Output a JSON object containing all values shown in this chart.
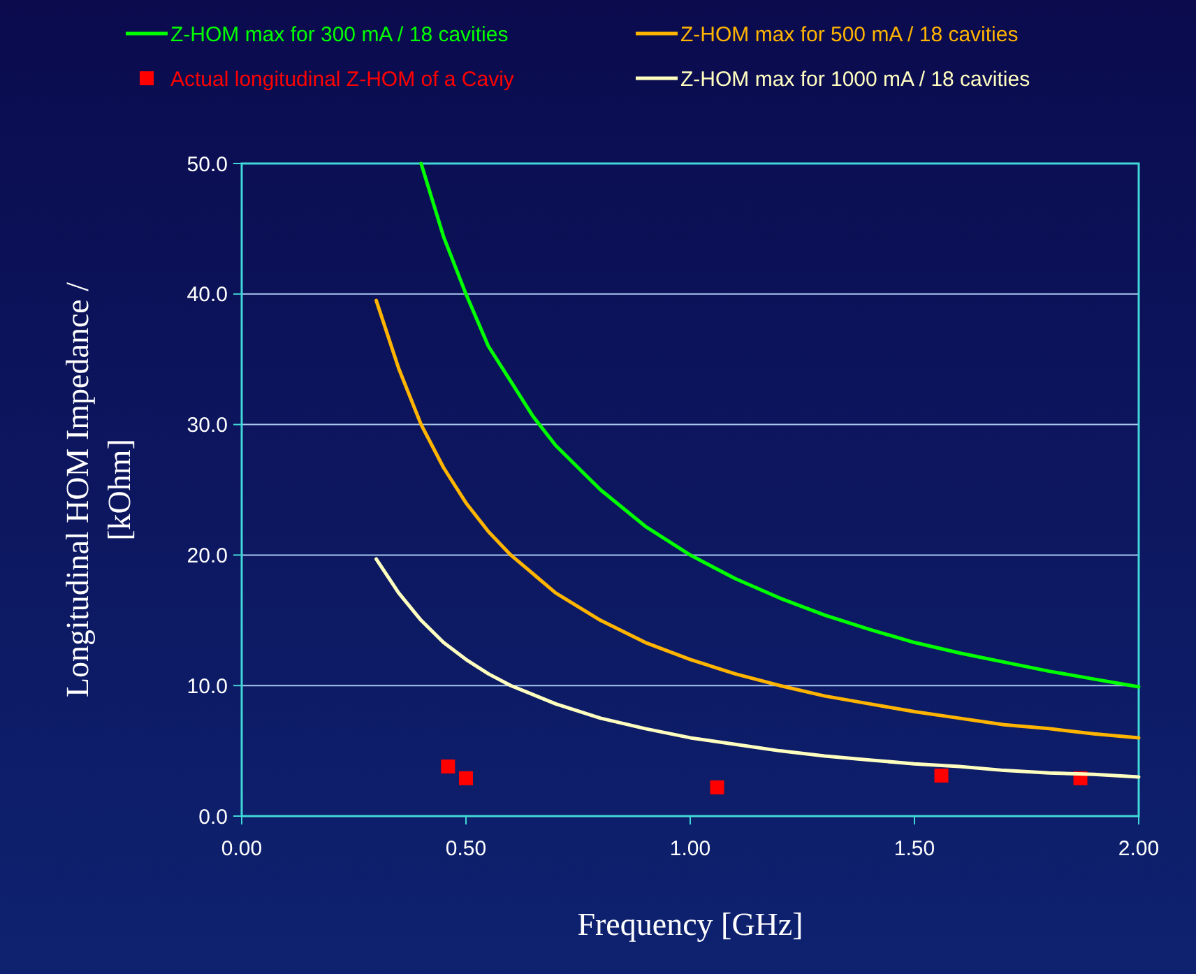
{
  "chart_data": {
    "type": "line",
    "xlabel": "Frequency [GHz]",
    "ylabel": "Longitudinal HOM Impedance / [kOhm]",
    "xlim": [
      0,
      2
    ],
    "ylim": [
      0,
      50
    ],
    "xticks": [
      {
        "value": 0,
        "label": "0.00"
      },
      {
        "value": 0.5,
        "label": "0.50"
      },
      {
        "value": 1,
        "label": "1.00"
      },
      {
        "value": 1.5,
        "label": "1.50"
      },
      {
        "value": 2,
        "label": "2.00"
      }
    ],
    "yticks": [
      {
        "value": 0,
        "label": "0.0"
      },
      {
        "value": 10,
        "label": "10.0"
      },
      {
        "value": 20,
        "label": "20.0"
      },
      {
        "value": 30,
        "label": "30.0"
      },
      {
        "value": 40,
        "label": "40.0"
      },
      {
        "value": 50,
        "label": "50.0"
      }
    ],
    "grid": "y",
    "legend": "top",
    "marker": "none",
    "series": [
      {
        "name": "Z-HOM max for 300 mA / 18 cavities",
        "color": "#00ff00",
        "x": [
          0.4,
          0.45,
          0.5,
          0.55,
          0.6,
          0.65,
          0.7,
          0.8,
          0.9,
          1.0,
          1.1,
          1.2,
          1.3,
          1.4,
          1.5,
          1.6,
          1.7,
          1.8,
          1.9,
          2.0
        ],
        "values": [
          50,
          44.4,
          40,
          36,
          33.3,
          30.6,
          28.4,
          25,
          22.2,
          20,
          18.2,
          16.7,
          15.4,
          14.3,
          13.3,
          12.5,
          11.8,
          11.1,
          10.5,
          9.9
        ]
      },
      {
        "name": "Z-HOM max for 500 mA / 18 cavities",
        "color": "#ffb400",
        "x": [
          0.3,
          0.35,
          0.4,
          0.45,
          0.5,
          0.55,
          0.6,
          0.7,
          0.8,
          0.9,
          1.0,
          1.1,
          1.2,
          1.3,
          1.4,
          1.5,
          1.6,
          1.7,
          1.8,
          1.9,
          2.0
        ],
        "values": [
          39.5,
          34.3,
          30,
          26.7,
          24,
          21.8,
          20,
          17.1,
          15,
          13.3,
          12,
          10.9,
          10,
          9.2,
          8.6,
          8,
          7.5,
          7,
          6.7,
          6.3,
          6
        ]
      },
      {
        "name": "Actual longitudinal Z-HOM of a Caviy",
        "type": "scatter",
        "marker": "square",
        "color": "#ff0000",
        "x": [
          0.46,
          0.5,
          1.06,
          1.56,
          1.87
        ],
        "values": [
          3.8,
          2.9,
          2.2,
          3.1,
          2.9
        ]
      },
      {
        "name": "Z-HOM max for 1000 mA / 18 cavities",
        "color": "#ffffc0",
        "x": [
          0.3,
          0.35,
          0.4,
          0.45,
          0.5,
          0.55,
          0.6,
          0.7,
          0.8,
          0.9,
          1.0,
          1.1,
          1.2,
          1.3,
          1.4,
          1.5,
          1.6,
          1.7,
          1.8,
          1.9,
          2.0
        ],
        "values": [
          19.7,
          17.1,
          15,
          13.3,
          12,
          10.9,
          10,
          8.6,
          7.5,
          6.7,
          6,
          5.5,
          5,
          4.6,
          4.3,
          4,
          3.8,
          3.5,
          3.3,
          3.2,
          3
        ]
      }
    ]
  }
}
